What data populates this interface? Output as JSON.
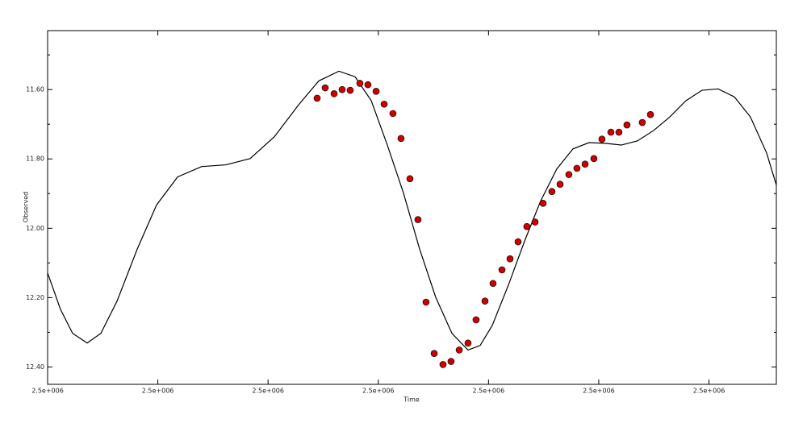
{
  "chart_data": {
    "type": "line",
    "x_label": "Time",
    "y_label": "Observed",
    "xlim": [
      0,
      6.611
    ],
    "ylim": [
      12.45,
      11.43
    ],
    "xticks": [
      {
        "value": 0,
        "label": "2.5e+006"
      },
      {
        "value": 1,
        "label": "2.5e+006"
      },
      {
        "value": 2,
        "label": "2.5e+006"
      },
      {
        "value": 3,
        "label": "2.5e+006"
      },
      {
        "value": 4,
        "label": "2.5e+006"
      },
      {
        "value": 5,
        "label": "2.5e+006"
      },
      {
        "value": 6,
        "label": "2.5e+006"
      }
    ],
    "yticks": [
      {
        "value": 11.6,
        "label": "11.60"
      },
      {
        "value": 11.8,
        "label": "11.80"
      },
      {
        "value": 12.0,
        "label": "12.00"
      },
      {
        "value": 12.2,
        "label": "12.20"
      },
      {
        "value": 12.4,
        "label": "12.40"
      }
    ],
    "yminorticks": [
      11.5,
      11.7,
      11.9,
      12.1,
      12.3
    ],
    "series": [
      {
        "type": "line",
        "color": "#000000",
        "x": [
          0,
          0.117,
          0.227,
          0.359,
          0.483,
          0.63,
          0.813,
          0.988,
          1.179,
          1.398,
          1.618,
          1.837,
          2.057,
          2.277,
          2.46,
          2.643,
          2.789,
          2.936,
          3.082,
          3.228,
          3.375,
          3.521,
          3.668,
          3.814,
          3.924,
          4.034,
          4.18,
          4.327,
          4.473,
          4.619,
          4.766,
          4.912,
          5.059,
          5.205,
          5.351,
          5.498,
          5.644,
          5.791,
          5.937,
          6.083,
          6.23,
          6.376,
          6.523,
          6.611
        ],
        "values": [
          12.129,
          12.234,
          12.303,
          12.331,
          12.303,
          12.21,
          12.06,
          11.933,
          11.852,
          11.822,
          11.817,
          11.799,
          11.736,
          11.644,
          11.575,
          11.547,
          11.563,
          11.632,
          11.76,
          11.898,
          12.06,
          12.199,
          12.303,
          12.351,
          12.338,
          12.28,
          12.164,
          12.037,
          11.921,
          11.829,
          11.771,
          11.753,
          11.755,
          11.76,
          11.748,
          11.718,
          11.679,
          11.632,
          11.602,
          11.598,
          11.621,
          11.679,
          11.783,
          11.875
        ]
      },
      {
        "type": "scatter",
        "color": "#cc0000",
        "x": [
          2.445,
          2.518,
          2.599,
          2.672,
          2.745,
          2.833,
          2.906,
          2.98,
          3.053,
          3.133,
          3.206,
          3.287,
          3.36,
          3.433,
          3.507,
          3.587,
          3.66,
          3.734,
          3.814,
          3.887,
          3.968,
          4.041,
          4.122,
          4.195,
          4.268,
          4.348,
          4.422,
          4.495,
          4.575,
          4.649,
          4.729,
          4.802,
          4.876,
          4.956,
          5.029,
          5.11,
          5.183,
          5.256,
          5.395,
          5.469
        ],
        "values": [
          11.625,
          11.595,
          11.612,
          11.6,
          11.602,
          11.582,
          11.586,
          11.605,
          11.642,
          11.669,
          11.741,
          11.857,
          11.975,
          12.213,
          12.361,
          12.393,
          12.384,
          12.351,
          12.331,
          12.264,
          12.21,
          12.159,
          12.12,
          12.088,
          12.039,
          11.995,
          11.982,
          11.928,
          11.894,
          11.873,
          11.845,
          11.827,
          11.815,
          11.799,
          11.743,
          11.723,
          11.723,
          11.702,
          11.695,
          11.672
        ]
      }
    ]
  }
}
